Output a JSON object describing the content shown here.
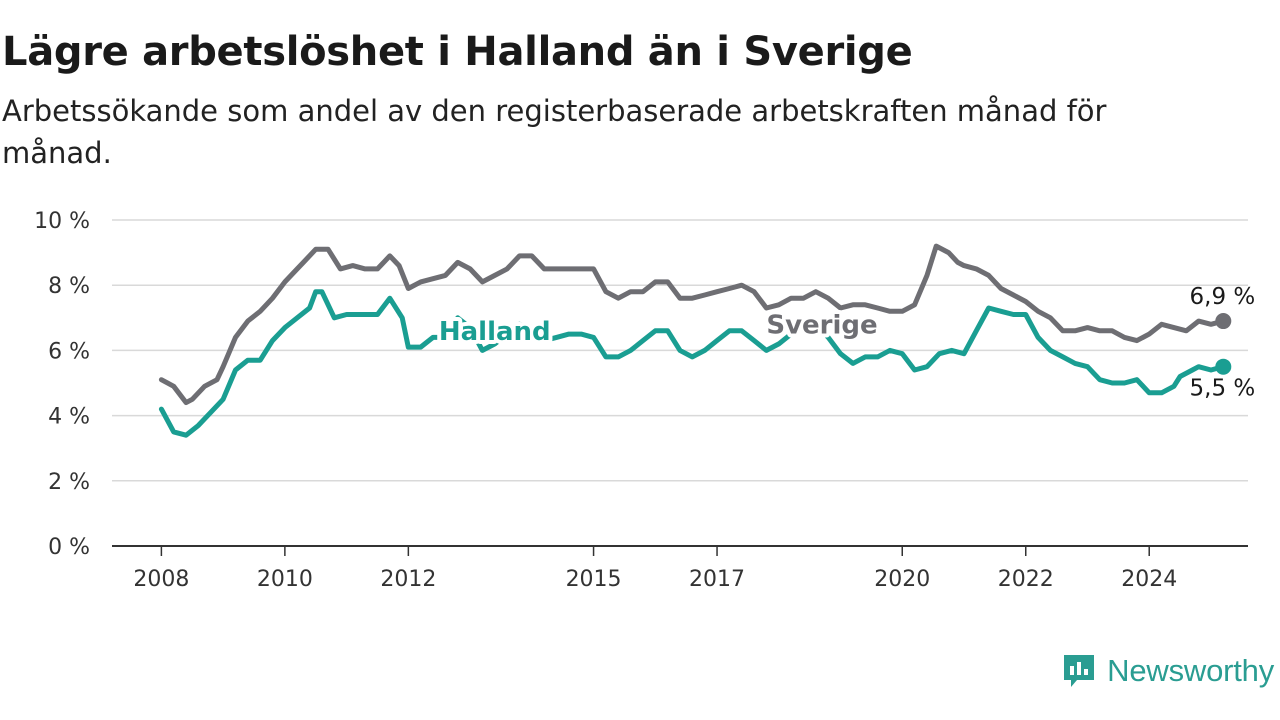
{
  "header": {
    "title": "Lägre arbetslöshet i Halland än i Sverige",
    "subtitle": "Arbetssökande som andel av den registerbaserade arbetskraften månad för månad."
  },
  "logo": {
    "text": "Newsworthy",
    "icon": "newsworthy-logo-icon",
    "color": "#2a9d92"
  },
  "chart_data": {
    "type": "line",
    "title": "Lägre arbetslöshet i Halland än i Sverige",
    "subtitle": "Arbetssökande som andel av den registerbaserade arbetskraften månad för månad.",
    "x_ticks": [
      2008,
      2010,
      2012,
      2015,
      2017,
      2020,
      2022,
      2024
    ],
    "x_tick_labels": [
      "2008",
      "2010",
      "2012",
      "2015",
      "2017",
      "2020",
      "2022",
      "2024"
    ],
    "xlim": [
      2007.2,
      2025.6
    ],
    "ylim": [
      0,
      10
    ],
    "y_ticks": [
      0,
      2,
      4,
      6,
      8,
      10
    ],
    "y_tick_labels": [
      "0 %",
      "2 %",
      "4 %",
      "6 %",
      "8 %",
      "10 %"
    ],
    "grid": true,
    "legend": "inline labels",
    "series": [
      {
        "name": "Sverige",
        "color": "#6e6e73",
        "end_label": "6,9 %",
        "points": [
          [
            2008.0,
            5.1
          ],
          [
            2008.2,
            4.9
          ],
          [
            2008.4,
            4.4
          ],
          [
            2008.5,
            4.5
          ],
          [
            2008.7,
            4.9
          ],
          [
            2008.9,
            5.1
          ],
          [
            2009.0,
            5.5
          ],
          [
            2009.2,
            6.4
          ],
          [
            2009.4,
            6.9
          ],
          [
            2009.6,
            7.2
          ],
          [
            2009.8,
            7.6
          ],
          [
            2010.0,
            8.1
          ],
          [
            2010.2,
            8.5
          ],
          [
            2010.3,
            8.7
          ],
          [
            2010.5,
            9.1
          ],
          [
            2010.7,
            9.1
          ],
          [
            2010.9,
            8.5
          ],
          [
            2011.1,
            8.6
          ],
          [
            2011.3,
            8.5
          ],
          [
            2011.5,
            8.5
          ],
          [
            2011.7,
            8.9
          ],
          [
            2011.85,
            8.6
          ],
          [
            2012.0,
            7.9
          ],
          [
            2012.2,
            8.1
          ],
          [
            2012.4,
            8.2
          ],
          [
            2012.6,
            8.3
          ],
          [
            2012.8,
            8.7
          ],
          [
            2013.0,
            8.5
          ],
          [
            2013.2,
            8.1
          ],
          [
            2013.4,
            8.3
          ],
          [
            2013.6,
            8.5
          ],
          [
            2013.8,
            8.9
          ],
          [
            2014.0,
            8.9
          ],
          [
            2014.2,
            8.5
          ],
          [
            2014.4,
            8.5
          ],
          [
            2014.6,
            8.5
          ],
          [
            2014.8,
            8.5
          ],
          [
            2015.0,
            8.5
          ],
          [
            2015.2,
            7.8
          ],
          [
            2015.4,
            7.6
          ],
          [
            2015.6,
            7.8
          ],
          [
            2015.8,
            7.8
          ],
          [
            2016.0,
            8.1
          ],
          [
            2016.2,
            8.1
          ],
          [
            2016.4,
            7.6
          ],
          [
            2016.6,
            7.6
          ],
          [
            2016.8,
            7.7
          ],
          [
            2017.0,
            7.8
          ],
          [
            2017.2,
            7.9
          ],
          [
            2017.4,
            8.0
          ],
          [
            2017.6,
            7.8
          ],
          [
            2017.8,
            7.3
          ],
          [
            2018.0,
            7.4
          ],
          [
            2018.2,
            7.6
          ],
          [
            2018.4,
            7.6
          ],
          [
            2018.6,
            7.8
          ],
          [
            2018.8,
            7.6
          ],
          [
            2019.0,
            7.3
          ],
          [
            2019.2,
            7.4
          ],
          [
            2019.4,
            7.4
          ],
          [
            2019.6,
            7.3
          ],
          [
            2019.8,
            7.2
          ],
          [
            2020.0,
            7.2
          ],
          [
            2020.2,
            7.4
          ],
          [
            2020.4,
            8.3
          ],
          [
            2020.55,
            9.2
          ],
          [
            2020.75,
            9.0
          ],
          [
            2020.9,
            8.7
          ],
          [
            2021.0,
            8.6
          ],
          [
            2021.2,
            8.5
          ],
          [
            2021.4,
            8.3
          ],
          [
            2021.6,
            7.9
          ],
          [
            2021.8,
            7.7
          ],
          [
            2022.0,
            7.5
          ],
          [
            2022.2,
            7.2
          ],
          [
            2022.4,
            7.0
          ],
          [
            2022.6,
            6.6
          ],
          [
            2022.8,
            6.6
          ],
          [
            2023.0,
            6.7
          ],
          [
            2023.2,
            6.6
          ],
          [
            2023.4,
            6.6
          ],
          [
            2023.6,
            6.4
          ],
          [
            2023.8,
            6.3
          ],
          [
            2024.0,
            6.5
          ],
          [
            2024.2,
            6.8
          ],
          [
            2024.4,
            6.7
          ],
          [
            2024.6,
            6.6
          ],
          [
            2024.8,
            6.9
          ],
          [
            2025.0,
            6.8
          ],
          [
            2025.2,
            6.9
          ]
        ]
      },
      {
        "name": "Halland",
        "color": "#1a9e92",
        "end_label": "5,5 %",
        "points": [
          [
            2008.0,
            4.2
          ],
          [
            2008.2,
            3.5
          ],
          [
            2008.4,
            3.4
          ],
          [
            2008.6,
            3.7
          ],
          [
            2008.8,
            4.1
          ],
          [
            2009.0,
            4.5
          ],
          [
            2009.2,
            5.4
          ],
          [
            2009.4,
            5.7
          ],
          [
            2009.6,
            5.7
          ],
          [
            2009.8,
            6.3
          ],
          [
            2010.0,
            6.7
          ],
          [
            2010.2,
            7.0
          ],
          [
            2010.4,
            7.3
          ],
          [
            2010.5,
            7.8
          ],
          [
            2010.6,
            7.8
          ],
          [
            2010.8,
            7.0
          ],
          [
            2011.0,
            7.1
          ],
          [
            2011.2,
            7.1
          ],
          [
            2011.5,
            7.1
          ],
          [
            2011.7,
            7.6
          ],
          [
            2011.9,
            7.0
          ],
          [
            2012.0,
            6.1
          ],
          [
            2012.2,
            6.1
          ],
          [
            2012.4,
            6.4
          ],
          [
            2012.6,
            6.4
          ],
          [
            2012.8,
            7.0
          ],
          [
            2013.0,
            6.7
          ],
          [
            2013.2,
            6.0
          ],
          [
            2013.4,
            6.2
          ],
          [
            2013.6,
            6.5
          ],
          [
            2013.8,
            6.8
          ],
          [
            2014.0,
            6.7
          ],
          [
            2014.2,
            6.3
          ],
          [
            2014.4,
            6.4
          ],
          [
            2014.6,
            6.5
          ],
          [
            2014.8,
            6.5
          ],
          [
            2015.0,
            6.4
          ],
          [
            2015.2,
            5.8
          ],
          [
            2015.4,
            5.8
          ],
          [
            2015.6,
            6.0
          ],
          [
            2015.8,
            6.3
          ],
          [
            2016.0,
            6.6
          ],
          [
            2016.2,
            6.6
          ],
          [
            2016.4,
            6.0
          ],
          [
            2016.6,
            5.8
          ],
          [
            2016.8,
            6.0
          ],
          [
            2017.0,
            6.3
          ],
          [
            2017.2,
            6.6
          ],
          [
            2017.4,
            6.6
          ],
          [
            2017.6,
            6.3
          ],
          [
            2017.8,
            6.0
          ],
          [
            2018.0,
            6.2
          ],
          [
            2018.2,
            6.5
          ],
          [
            2018.4,
            6.7
          ],
          [
            2018.6,
            6.8
          ],
          [
            2018.8,
            6.4
          ],
          [
            2019.0,
            5.9
          ],
          [
            2019.2,
            5.6
          ],
          [
            2019.4,
            5.8
          ],
          [
            2019.6,
            5.8
          ],
          [
            2019.8,
            6.0
          ],
          [
            2020.0,
            5.9
          ],
          [
            2020.2,
            5.4
          ],
          [
            2020.4,
            5.5
          ],
          [
            2020.6,
            5.9
          ],
          [
            2020.8,
            6.0
          ],
          [
            2021.0,
            5.9
          ],
          [
            2021.2,
            6.6
          ],
          [
            2021.4,
            7.3
          ],
          [
            2021.6,
            7.2
          ],
          [
            2021.8,
            7.1
          ],
          [
            2022.0,
            7.1
          ],
          [
            2022.2,
            6.4
          ],
          [
            2022.4,
            6.0
          ],
          [
            2022.6,
            5.8
          ],
          [
            2022.8,
            5.6
          ],
          [
            2023.0,
            5.5
          ],
          [
            2023.2,
            5.1
          ],
          [
            2023.4,
            5.0
          ],
          [
            2023.6,
            5.0
          ],
          [
            2023.8,
            5.1
          ],
          [
            2024.0,
            4.7
          ],
          [
            2024.2,
            4.7
          ],
          [
            2024.4,
            4.9
          ],
          [
            2024.5,
            5.2
          ],
          [
            2024.7,
            5.4
          ],
          [
            2024.8,
            5.5
          ],
          [
            2025.0,
            5.4
          ],
          [
            2025.2,
            5.5
          ]
        ]
      }
    ],
    "annotations": [
      {
        "text": "Halland",
        "series": "Halland",
        "x": 2013.4,
        "y": 6.6
      },
      {
        "text": "Sverige",
        "series": "Sverige",
        "x": 2018.7,
        "y": 6.8
      }
    ]
  }
}
